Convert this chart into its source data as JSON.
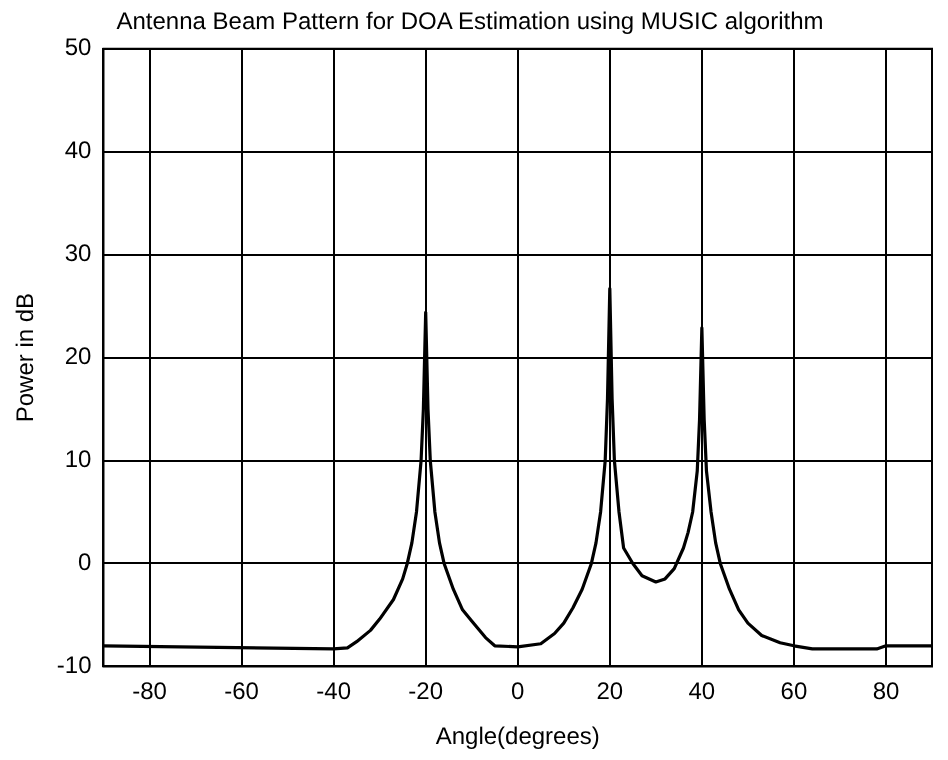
{
  "chart_data": {
    "type": "line",
    "title": "Antenna Beam Pattern for DOA Estimation using MUSIC algorithm",
    "xlabel": "Angle(degrees)",
    "ylabel": "Power in dB",
    "xlim": [
      -90,
      90
    ],
    "xticks": [
      -80,
      -60,
      -40,
      -20,
      0,
      20,
      40,
      60,
      80
    ],
    "ylim": [
      -10,
      50
    ],
    "yticks": [
      -10,
      0,
      10,
      20,
      30,
      40,
      50
    ],
    "grid": true,
    "legend": false,
    "marker": "none",
    "line_style": "solid",
    "series": [
      {
        "color": "#000000",
        "x": [
          -90,
          -40,
          -37,
          -35,
          -32,
          -30,
          -27,
          -25,
          -24,
          -23,
          -22,
          -21,
          -20.5,
          -20,
          -19.5,
          -19,
          -18,
          -17,
          -16,
          -14,
          -12,
          -10,
          -7,
          -5,
          0,
          5,
          8,
          10,
          12,
          14,
          16,
          17,
          18,
          19,
          19.5,
          20,
          20.5,
          21,
          22,
          23,
          25,
          27,
          30,
          32,
          34,
          36,
          37,
          38,
          39,
          39.5,
          40,
          40.5,
          41,
          42,
          43,
          44,
          46,
          48,
          50,
          53,
          57,
          60,
          64,
          78,
          80,
          90
        ],
        "values": [
          -8,
          -8.3,
          -8.2,
          -7.6,
          -6.5,
          -5.4,
          -3.5,
          -1.5,
          0,
          2,
          5,
          10,
          15,
          24.4,
          15,
          10,
          5,
          2,
          0,
          -2.5,
          -4.5,
          -5.6,
          -7.2,
          -8,
          -8.1,
          -7.8,
          -6.8,
          -5.8,
          -4.3,
          -2.5,
          0,
          2,
          5,
          10,
          16,
          26.7,
          16,
          10,
          5,
          1.5,
          0,
          -1.2,
          -1.8,
          -1.5,
          -0.5,
          1.5,
          3,
          5,
          9,
          14,
          22.9,
          14,
          9,
          5,
          2,
          0,
          -2.5,
          -4.5,
          -5.8,
          -7,
          -7.7,
          -8,
          -8.3,
          -8.3,
          -8,
          -8
        ]
      }
    ]
  }
}
